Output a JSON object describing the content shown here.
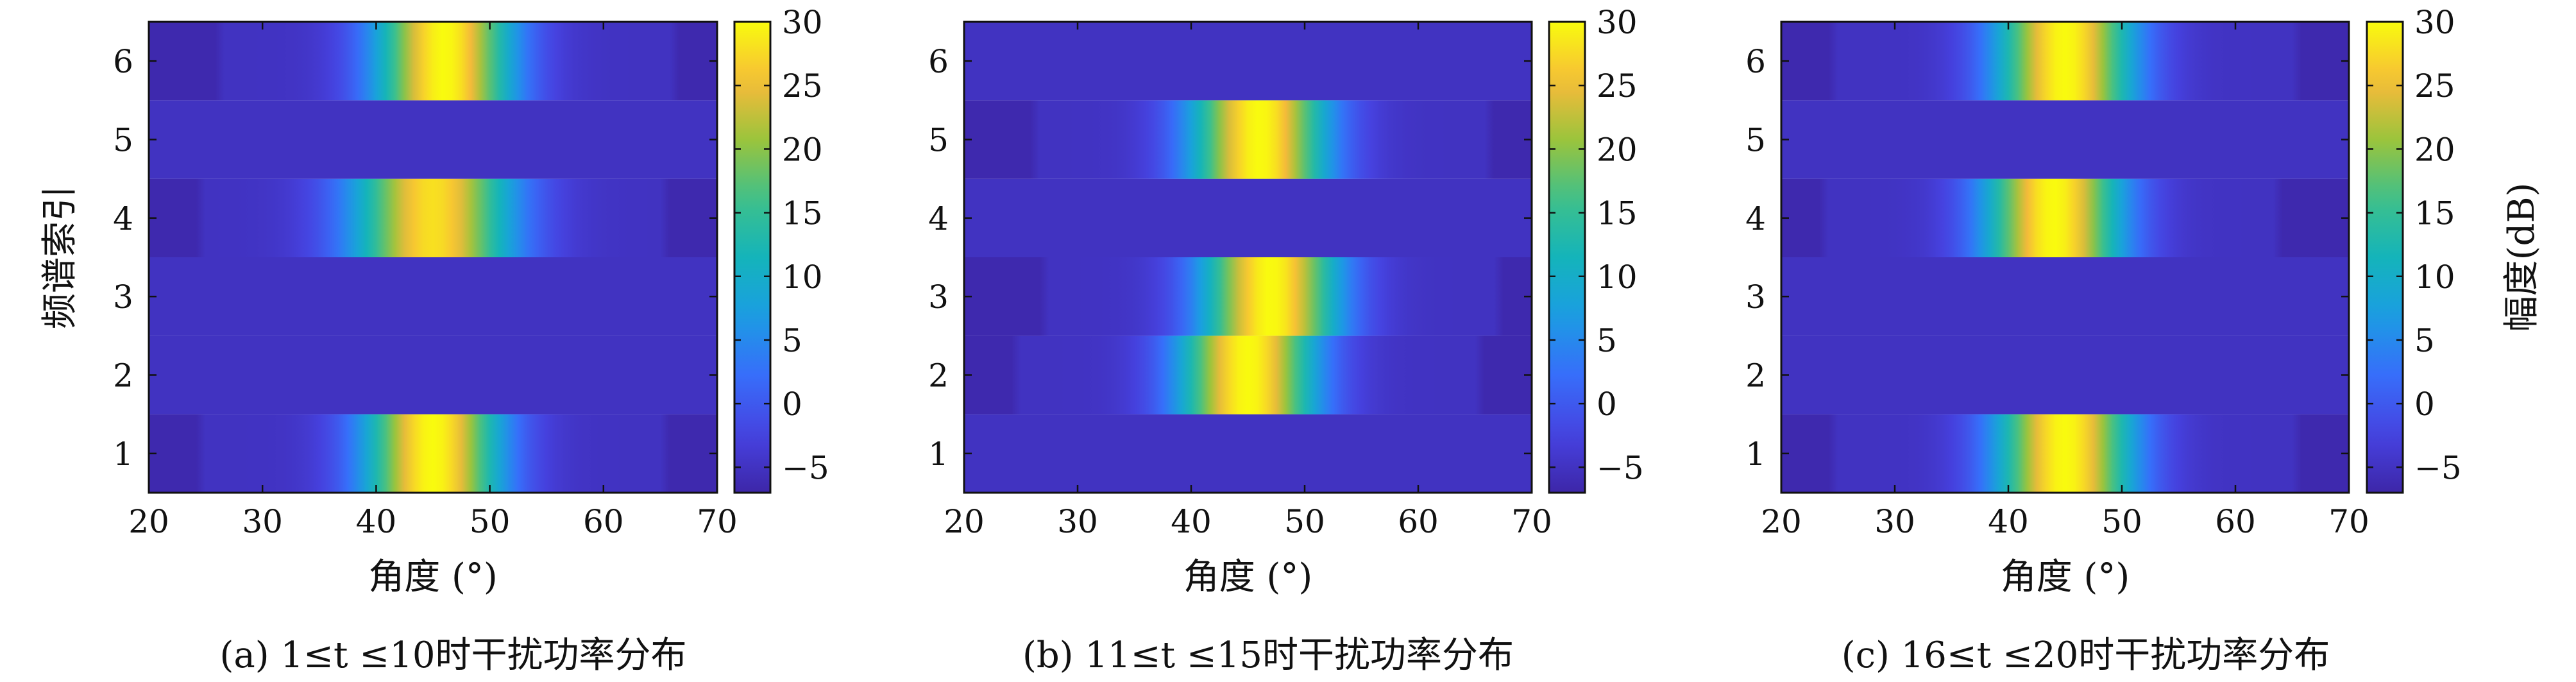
{
  "chart_data": [
    {
      "type": "heatmap",
      "caption": "(a) 1≤t ≤10时干扰功率分布",
      "xlabel": "角度 (°)",
      "ylabel": "频谱索引",
      "colorbar_label": "",
      "xlim": [
        20,
        70
      ],
      "ylim": [
        0.5,
        6.5
      ],
      "xticks": [
        20,
        30,
        40,
        50,
        60,
        70
      ],
      "yticks": [
        1,
        2,
        3,
        4,
        5,
        6
      ],
      "clim": [
        -7,
        30
      ],
      "cticks": [
        -5,
        0,
        5,
        10,
        15,
        20,
        25,
        30
      ],
      "colormap": "parula",
      "rows": [
        {
          "index": 1,
          "active": true,
          "peak_deg": 45,
          "peak_db": 30,
          "width_deg": 6,
          "floor_db": -5
        },
        {
          "index": 2,
          "active": false,
          "floor_db": -5
        },
        {
          "index": 3,
          "active": false,
          "floor_db": -5
        },
        {
          "index": 4,
          "active": true,
          "peak_deg": 45,
          "peak_db": 28,
          "width_deg": 7,
          "floor_db": -5
        },
        {
          "index": 5,
          "active": false,
          "floor_db": -5
        },
        {
          "index": 6,
          "active": true,
          "peak_deg": 46,
          "peak_db": 30,
          "width_deg": 6,
          "floor_db": -5
        }
      ]
    },
    {
      "type": "heatmap",
      "caption": "(b) 11≤t ≤15时干扰功率分布",
      "xlabel": "角度 (°)",
      "ylabel": "",
      "colorbar_label": "",
      "xlim": [
        20,
        70
      ],
      "ylim": [
        0.5,
        6.5
      ],
      "xticks": [
        20,
        30,
        40,
        50,
        60,
        70
      ],
      "yticks": [
        1,
        2,
        3,
        4,
        5,
        6
      ],
      "clim": [
        -7,
        30
      ],
      "cticks": [
        -5,
        0,
        5,
        10,
        15,
        20,
        25,
        30
      ],
      "colormap": "parula",
      "rows": [
        {
          "index": 1,
          "active": false,
          "floor_db": -5
        },
        {
          "index": 2,
          "active": true,
          "peak_deg": 45,
          "peak_db": 30,
          "width_deg": 6,
          "floor_db": -5
        },
        {
          "index": 3,
          "active": true,
          "peak_deg": 47,
          "peak_db": 30,
          "width_deg": 6,
          "floor_db": -5
        },
        {
          "index": 4,
          "active": false,
          "floor_db": -5
        },
        {
          "index": 5,
          "active": true,
          "peak_deg": 46,
          "peak_db": 30,
          "width_deg": 6,
          "floor_db": -5
        },
        {
          "index": 6,
          "active": false,
          "floor_db": -5
        }
      ]
    },
    {
      "type": "heatmap",
      "caption": "(c) 16≤t ≤20时干扰功率分布",
      "xlabel": "角度 (°)",
      "ylabel": "",
      "colorbar_label": "幅度(dB)",
      "xlim": [
        20,
        70
      ],
      "ylim": [
        0.5,
        6.5
      ],
      "xticks": [
        20,
        30,
        40,
        50,
        60,
        70
      ],
      "yticks": [
        1,
        2,
        3,
        4,
        5,
        6
      ],
      "clim": [
        -7,
        30
      ],
      "cticks": [
        -5,
        0,
        5,
        10,
        15,
        20,
        25,
        30
      ],
      "colormap": "parula",
      "rows": [
        {
          "index": 1,
          "active": true,
          "peak_deg": 45,
          "peak_db": 30,
          "width_deg": 6,
          "floor_db": -5
        },
        {
          "index": 2,
          "active": false,
          "floor_db": -5
        },
        {
          "index": 3,
          "active": false,
          "floor_db": -5
        },
        {
          "index": 4,
          "active": true,
          "peak_deg": 44,
          "peak_db": 30,
          "width_deg": 6,
          "floor_db": -5
        },
        {
          "index": 5,
          "active": false,
          "floor_db": -5
        },
        {
          "index": 6,
          "active": true,
          "peak_deg": 45,
          "peak_db": 30,
          "width_deg": 6,
          "floor_db": -5
        }
      ]
    }
  ]
}
